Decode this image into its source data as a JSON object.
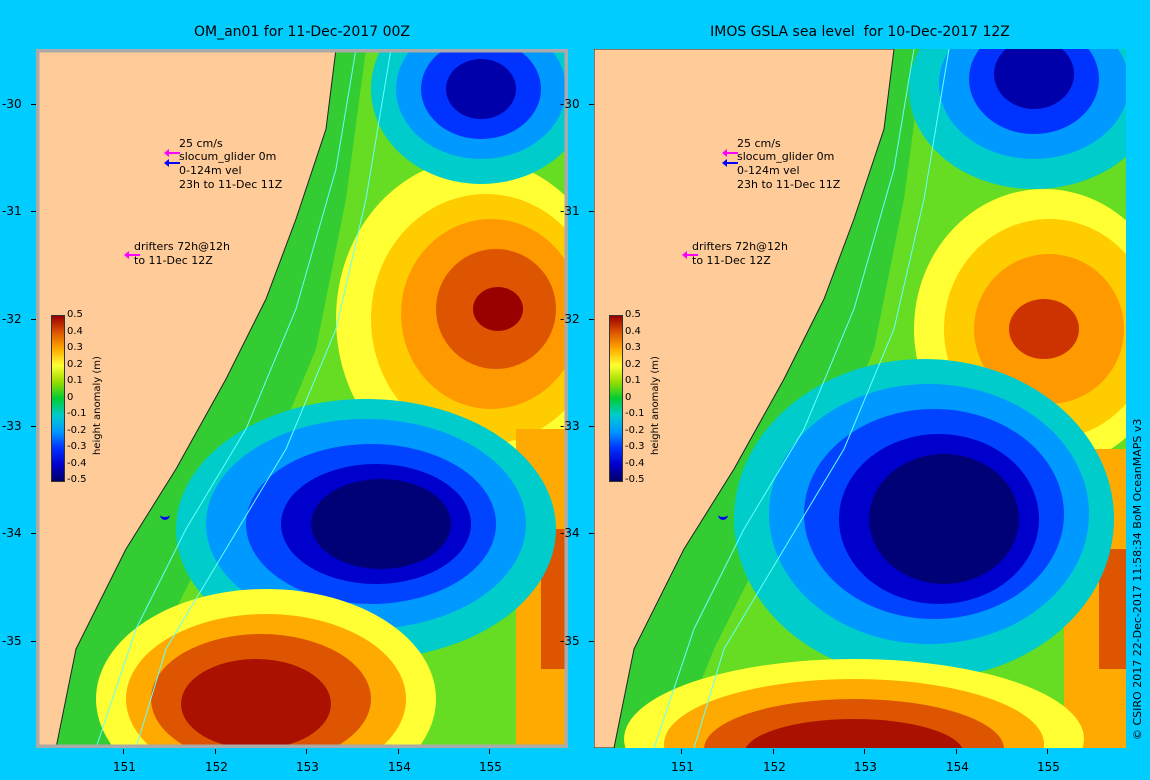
{
  "panels": [
    {
      "title": "OM_an01 for 11-Dec-2017 00Z",
      "legend": {
        "speed": "25 cm/s",
        "glider": "slocum_glider 0m",
        "vel": "0-124m vel",
        "window": "23h to 11-Dec 11Z",
        "drifters_1": "drifters 72h@12h",
        "drifters_2": "to 11-Dec 12Z"
      }
    },
    {
      "title": "IMOS GSLA sea level  for 10-Dec-2017 12Z",
      "legend": {
        "speed": "25 cm/s",
        "glider": "slocum_glider 0m",
        "vel": "0-124m vel",
        "window": "23h to 11-Dec 11Z",
        "drifters_1": "drifters 72h@12h",
        "drifters_2": "to 11-Dec 12Z"
      }
    }
  ],
  "colorbar": {
    "label": "height anomaly (m)",
    "ticks": [
      "0.5",
      "0.4",
      "0.3",
      "0.2",
      "0.1",
      "0",
      "-0.1",
      "-0.2",
      "-0.3",
      "-0.4",
      "-0.5"
    ]
  },
  "x_ticks": [
    "151",
    "152",
    "153",
    "154",
    "155"
  ],
  "y_ticks": [
    "-30",
    "-31",
    "-32",
    "-33",
    "-34",
    "-35"
  ],
  "credit": "© CSIRO 2017   22-Dec-2017 11:58:34 BoM OceanMAPS v3",
  "colors": {
    "background": "#00ccff",
    "land": "#ffcc99",
    "arrow_magenta": "#ff00ff",
    "arrow_blue": "#0000ff"
  }
}
